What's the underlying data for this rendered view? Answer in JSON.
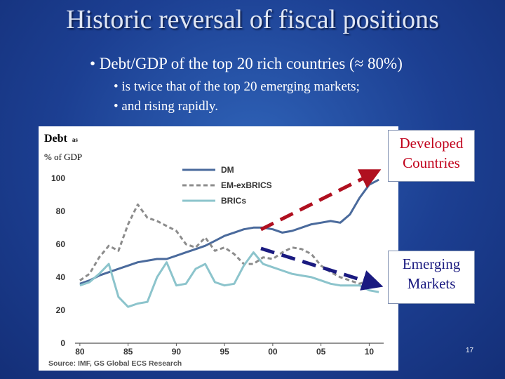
{
  "slide": {
    "title": "Historic reversal of fiscal positions",
    "bullet_main": "• Debt/GDP of the top 20 rich countries (≈ 80%)",
    "bullet_sub1": "• is twice that of the top 20 emerging markets;",
    "bullet_sub2": "• and rising rapidly.",
    "page_number": "17"
  },
  "annotations": {
    "ylabel_main": "Debt",
    "ylabel_as": "as",
    "ylabel_line2": "% of GDP",
    "developed_line1": "Developed",
    "developed_line2": "Countries",
    "emerging_line1": "Emerging",
    "emerging_line2": "Markets",
    "developed_color": "#b01020",
    "emerging_color": "#1a1a80"
  },
  "chart_data": {
    "type": "line",
    "x": [
      1980,
      1981,
      1982,
      1983,
      1984,
      1985,
      1986,
      1987,
      1988,
      1989,
      1990,
      1991,
      1992,
      1993,
      1994,
      1995,
      1996,
      1997,
      1998,
      1999,
      2000,
      2001,
      2002,
      2003,
      2004,
      2005,
      2006,
      2007,
      2008,
      2009,
      2010,
      2011
    ],
    "series": [
      {
        "name": "DM",
        "color": "#4a6a9c",
        "values": [
          36,
          38,
          41,
          43,
          45,
          47,
          49,
          50,
          51,
          51,
          53,
          55,
          57,
          59,
          62,
          65,
          67,
          69,
          70,
          70,
          69,
          67,
          68,
          70,
          72,
          73,
          74,
          73,
          78,
          88,
          96,
          99
        ]
      },
      {
        "name": "EM-exBRICS",
        "color": "#8c8c8c",
        "values": [
          38,
          42,
          52,
          59,
          56,
          72,
          84,
          76,
          74,
          71,
          68,
          60,
          58,
          64,
          56,
          58,
          54,
          48,
          48,
          52,
          51,
          55,
          58,
          57,
          54,
          47,
          43,
          40,
          38,
          36,
          38,
          38
        ]
      },
      {
        "name": "BRICs",
        "color": "#8cc4cc",
        "values": [
          35,
          37,
          42,
          48,
          28,
          22,
          24,
          25,
          40,
          49,
          35,
          36,
          45,
          48,
          37,
          35,
          36,
          47,
          55,
          48,
          46,
          44,
          42,
          41,
          40,
          38,
          36,
          35,
          35,
          35,
          32,
          31
        ]
      }
    ],
    "xticks": [
      "80",
      "85",
      "90",
      "95",
      "00",
      "05",
      "10"
    ],
    "yticks": [
      "0",
      "20",
      "40",
      "60",
      "80",
      "100"
    ],
    "xlim": [
      1979.5,
      2011.5
    ],
    "ylim": [
      0,
      105
    ],
    "source": "Source: IMF, GS Global ECS Research",
    "legend": "top"
  }
}
